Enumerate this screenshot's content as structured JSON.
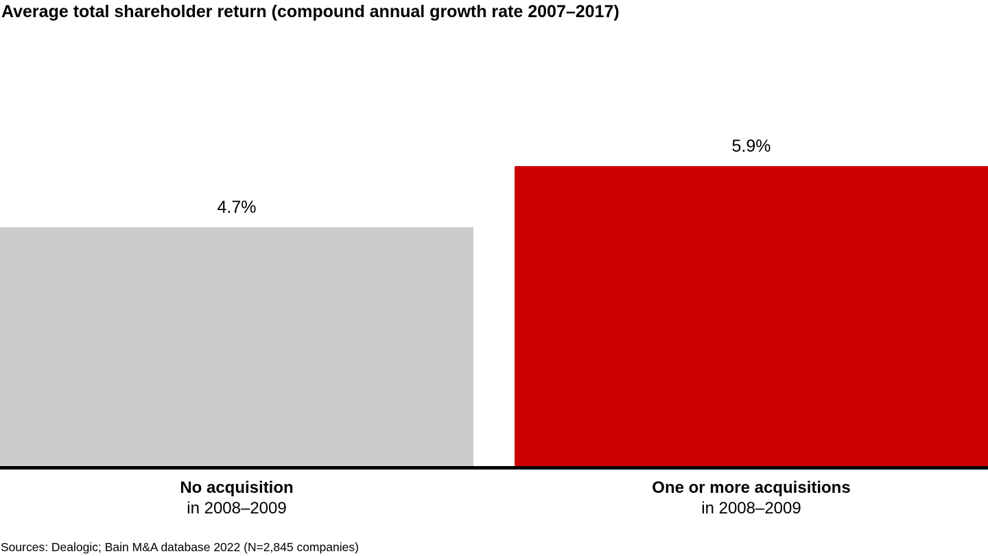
{
  "title": "Average total shareholder return (compound annual growth rate 2007–2017)",
  "source_note": "Sources: Dealogic; Bain M&A database 2022 (N=2,845 companies)",
  "colors": {
    "bar_no_acquisition": "#cccccc",
    "bar_acquisitions": "#cc0000",
    "axis": "#000000",
    "text": "#000000",
    "background": "#ffffff"
  },
  "category_labels": [
    {
      "line1": "No acquisition",
      "line2": "in 2008–2009"
    },
    {
      "line1": "One or more acquisitions",
      "line2": "in 2008–2009"
    }
  ],
  "chart_data": {
    "type": "bar",
    "title": "Average total shareholder return (compound annual growth rate 2007–2017)",
    "categories": [
      "No acquisition in 2008–2009",
      "One or more acquisitions in 2008–2009"
    ],
    "values": [
      4.7,
      5.9
    ],
    "value_labels": [
      "4.7%",
      "5.9%"
    ],
    "unit": "%",
    "series_colors": [
      "#cccccc",
      "#cc0000"
    ],
    "xlabel": "",
    "ylabel": "",
    "ylim": [
      0,
      6.5
    ],
    "grid": false,
    "legend_position": "none",
    "annotations": [
      "Sources: Dealogic; Bain M&A database 2022 (N=2,845 companies)"
    ]
  }
}
